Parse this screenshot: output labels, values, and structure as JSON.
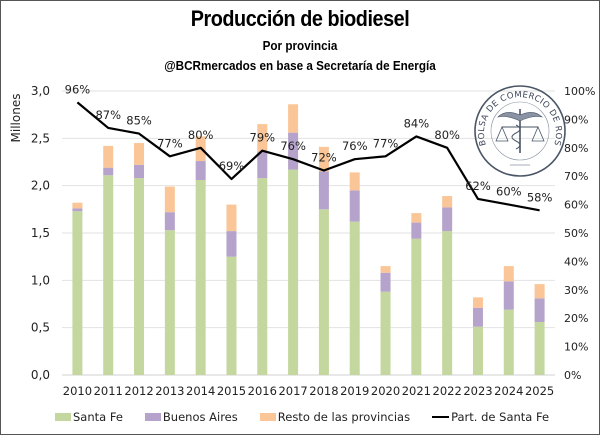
{
  "chart_data": {
    "type": "bar",
    "subtype": "stacked-bar-with-line",
    "title": "Producción de biodiesel",
    "subtitle": "Por provincia",
    "source": "@BCRmercados en base a Secretaría de Energía",
    "ylabel": "Millones",
    "y2label": "",
    "xlabel": "",
    "categories": [
      "2010",
      "2011",
      "2012",
      "2013",
      "2014",
      "2015",
      "2016",
      "2017",
      "2018",
      "2019",
      "2020",
      "2021",
      "2022",
      "2023",
      "2024",
      "2025"
    ],
    "ylim": [
      0,
      3.0
    ],
    "yticks": [
      "0,0",
      "0,5",
      "1,0",
      "1,5",
      "2,0",
      "2,5",
      "3,0"
    ],
    "y2lim": [
      0,
      100
    ],
    "y2ticks": [
      "0%",
      "10%",
      "20%",
      "30%",
      "40%",
      "50%",
      "60%",
      "70%",
      "80%",
      "90%",
      "100%"
    ],
    "grid": true,
    "legend_position": "bottom",
    "series": [
      {
        "name": "Santa Fe",
        "kind": "bar",
        "color": "#c4d79e",
        "values": [
          1.73,
          2.11,
          2.08,
          1.53,
          2.06,
          1.25,
          2.08,
          2.17,
          1.75,
          1.62,
          0.88,
          1.44,
          1.52,
          0.51,
          0.69,
          0.56
        ]
      },
      {
        "name": "Buenos Aires",
        "kind": "bar",
        "color": "#b5a3cb",
        "values": [
          0.03,
          0.08,
          0.14,
          0.19,
          0.2,
          0.27,
          0.28,
          0.39,
          0.4,
          0.33,
          0.2,
          0.17,
          0.25,
          0.2,
          0.3,
          0.25
        ]
      },
      {
        "name": "Resto de las provincias",
        "kind": "bar",
        "color": "#fac597",
        "values": [
          0.06,
          0.23,
          0.23,
          0.27,
          0.26,
          0.28,
          0.29,
          0.3,
          0.26,
          0.19,
          0.07,
          0.1,
          0.12,
          0.11,
          0.16,
          0.15
        ]
      },
      {
        "name": "Part. de Santa Fe",
        "kind": "line",
        "axis": "right",
        "color": "#000000",
        "values": [
          96,
          87,
          85,
          77,
          80,
          69,
          79,
          76,
          72,
          76,
          77,
          84,
          80,
          62,
          60,
          58
        ],
        "labels": [
          "96%",
          "87%",
          "85%",
          "77%",
          "80%",
          "69%",
          "79%",
          "76%",
          "72%",
          "76%",
          "77%",
          "84%",
          "80%",
          "62%",
          "60%",
          "58%"
        ]
      }
    ]
  },
  "logo": {
    "text": "BOLSA DE COMERCIO DE ROSARIO",
    "icon": "caduceus-scales-seal-icon"
  }
}
